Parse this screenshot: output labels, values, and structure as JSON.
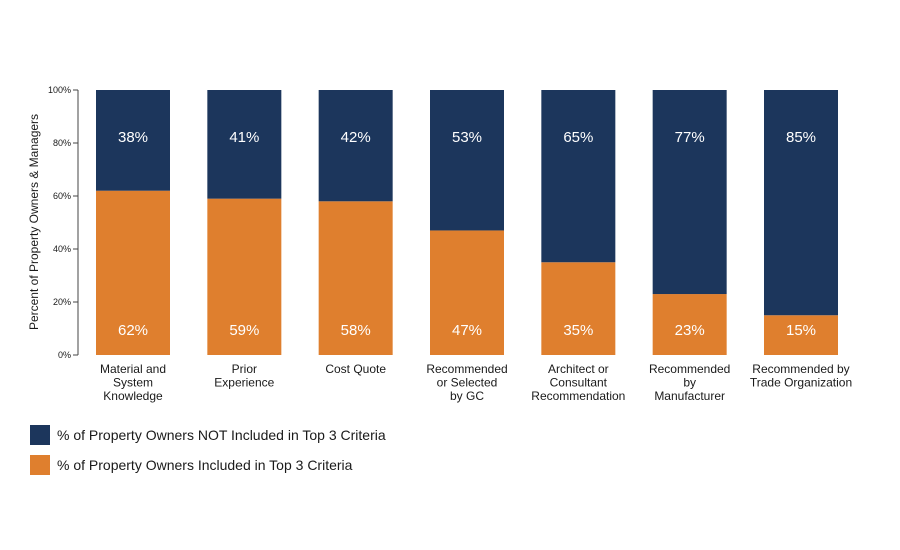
{
  "chart_data": {
    "type": "bar",
    "stacked": true,
    "ylabel": "Percent of Property Owners & Managers",
    "xlabel": "",
    "ylim": [
      0,
      100
    ],
    "yticks": [
      "0%",
      "20%",
      "40%",
      "60%",
      "80%",
      "100%"
    ],
    "categories": [
      "Material and System Knowledge",
      "Prior Experience",
      "Cost Quote",
      "Recommended or Selected by GC",
      "Architect or Consultant Recommendation",
      "Recommended by Manufacturer",
      "Recommended by Trade Organization"
    ],
    "category_lines": [
      [
        "Material and",
        "System",
        "Knowledge"
      ],
      [
        "Prior",
        "Experience"
      ],
      [
        "Cost Quote"
      ],
      [
        "Recommended",
        "or Selected",
        "by GC"
      ],
      [
        "Architect or",
        "Consultant",
        "Recommendation"
      ],
      [
        "Recommended",
        "by",
        "Manufacturer"
      ],
      [
        "Recommended by",
        "Trade Organization"
      ]
    ],
    "series": [
      {
        "name": "% of Property Owners Included in Top 3 Criteria",
        "color": "#df7f2e",
        "values": [
          62,
          59,
          58,
          47,
          35,
          23,
          15
        ],
        "labels": [
          "62%",
          "59%",
          "58%",
          "47%",
          "35%",
          "23%",
          "15%"
        ]
      },
      {
        "name": "% of Property Owners NOT Included in Top 3 Criteria",
        "color": "#1c365c",
        "values": [
          38,
          41,
          42,
          53,
          65,
          77,
          85
        ],
        "labels": [
          "38%",
          "41%",
          "42%",
          "53%",
          "65%",
          "77%",
          "85%"
        ]
      }
    ]
  },
  "legend": {
    "items": [
      {
        "label": "% of Property Owners NOT Included in Top 3 Criteria",
        "color": "#1c365c"
      },
      {
        "label": "% of Property Owners Included in Top 3 Criteria",
        "color": "#df7f2e"
      }
    ]
  }
}
